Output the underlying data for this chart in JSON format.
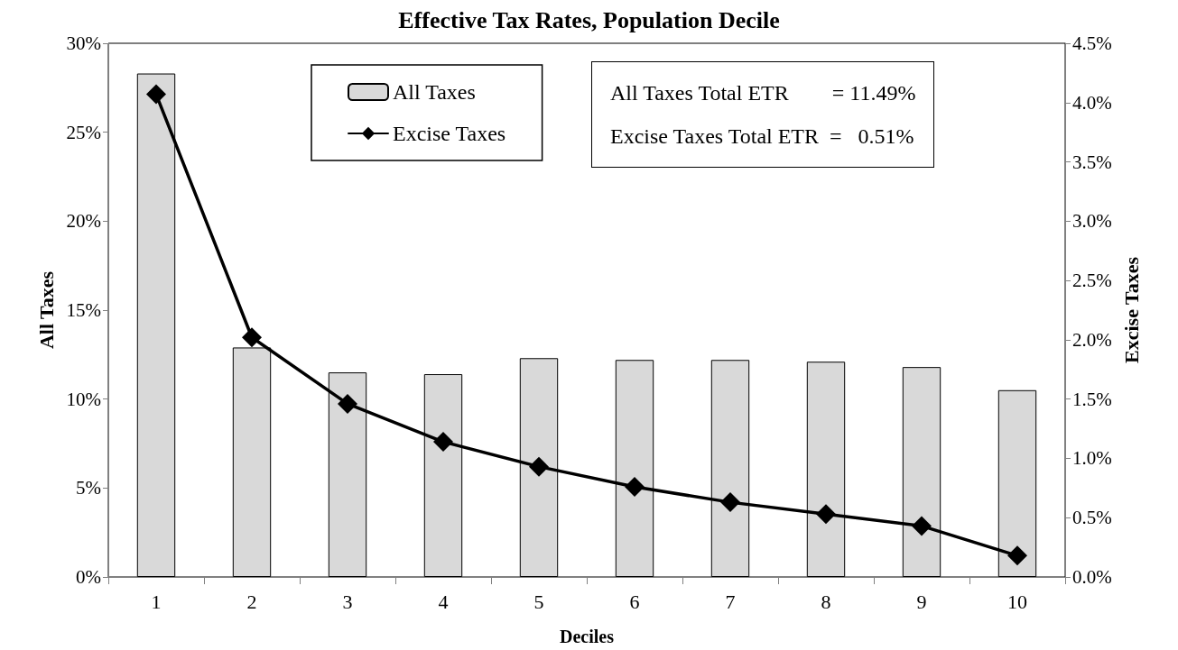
{
  "chart_data": {
    "type": "bar",
    "title": "Effective Tax Rates, Population Decile",
    "xlabel": "Deciles",
    "ylabel": "All Taxes",
    "y2label": "Excise Taxes",
    "categories": [
      "1",
      "2",
      "3",
      "4",
      "5",
      "6",
      "7",
      "8",
      "9",
      "10"
    ],
    "series": [
      {
        "name": "All Taxes",
        "color": "#d9d9d9",
        "values": [
          28.3,
          12.9,
          11.5,
          11.4,
          12.3,
          12.2,
          12.2,
          12.1,
          11.8,
          10.5
        ]
      },
      {
        "name": "Excise Taxes",
        "type": "line",
        "axis": "y2",
        "color": "#000000",
        "marker": "diamond",
        "values": [
          4.07,
          2.02,
          1.46,
          1.14,
          0.93,
          0.76,
          0.63,
          0.53,
          0.43,
          0.18
        ]
      }
    ],
    "ylim": [
      0,
      30
    ],
    "yticks": [
      {
        "value": 0,
        "label": "0%"
      },
      {
        "value": 5,
        "label": "5%"
      },
      {
        "value": 10,
        "label": "10%"
      },
      {
        "value": 15,
        "label": "15%"
      },
      {
        "value": 20,
        "label": "20%"
      },
      {
        "value": 25,
        "label": "25%"
      },
      {
        "value": 30,
        "label": "30%"
      }
    ],
    "y2lim": [
      0,
      4.5
    ],
    "y2ticks": [
      {
        "value": 0,
        "label": "0.0%"
      },
      {
        "value": 0.5,
        "label": "0.5%"
      },
      {
        "value": 1,
        "label": "1.0%"
      },
      {
        "value": 1.5,
        "label": "1.5%"
      },
      {
        "value": 2,
        "label": "2.0%"
      },
      {
        "value": 2.5,
        "label": "2.5%"
      },
      {
        "value": 3,
        "label": "3.0%"
      },
      {
        "value": 3.5,
        "label": "3.5%"
      },
      {
        "value": 4,
        "label": "4.0%"
      },
      {
        "value": 4.5,
        "label": "4.5%"
      }
    ],
    "annotations": [
      "All Taxes Total ETR        = 11.49%",
      "Excise Taxes Total ETR  =   0.51%"
    ],
    "grid": false,
    "legend": "top",
    "line_style": "solid"
  }
}
